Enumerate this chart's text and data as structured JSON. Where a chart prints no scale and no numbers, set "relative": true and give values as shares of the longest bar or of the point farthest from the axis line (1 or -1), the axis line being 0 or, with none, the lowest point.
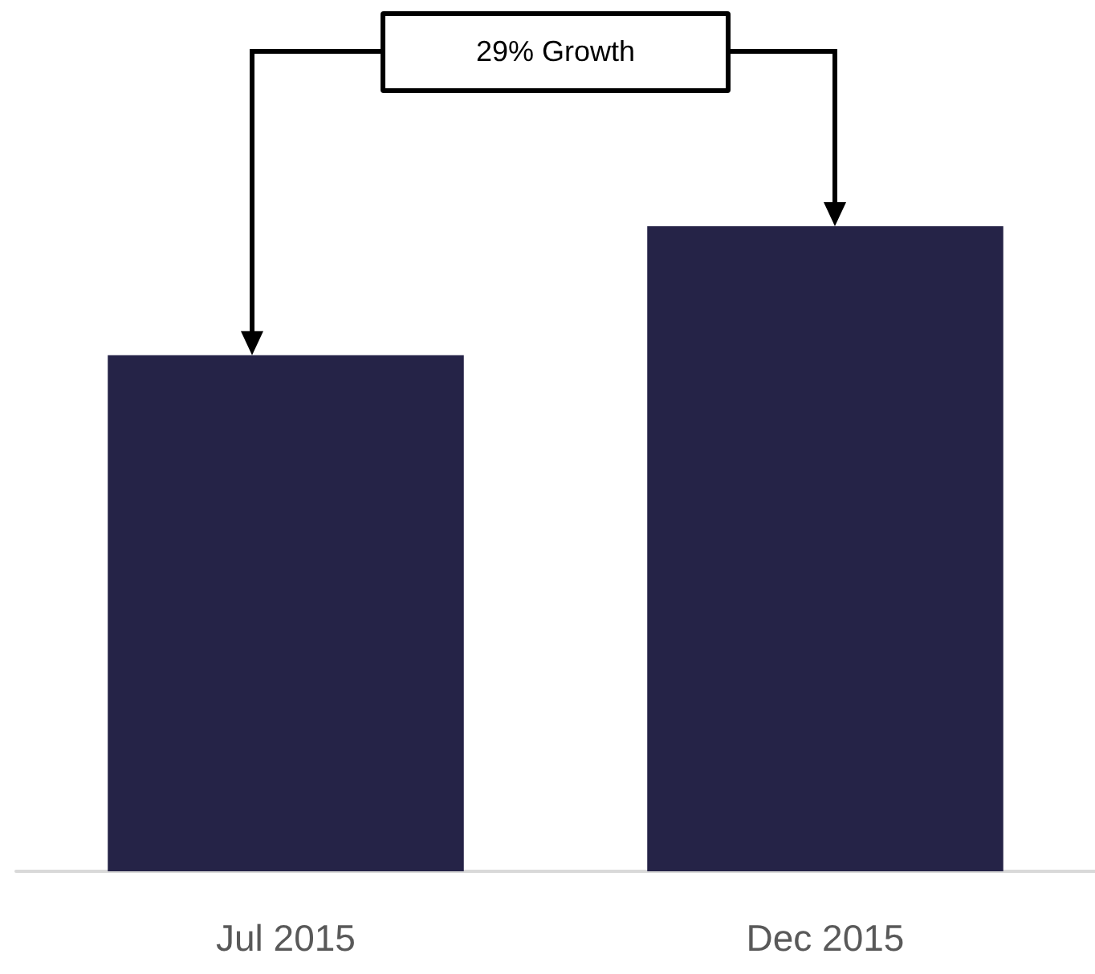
{
  "chart_data": {
    "type": "bar",
    "relative": true,
    "categories": [
      "Jul 2015",
      "Dec 2015"
    ],
    "values": [
      0.8,
      1
    ],
    "color": "#252347",
    "annotations": [
      "29% Growth"
    ]
  }
}
